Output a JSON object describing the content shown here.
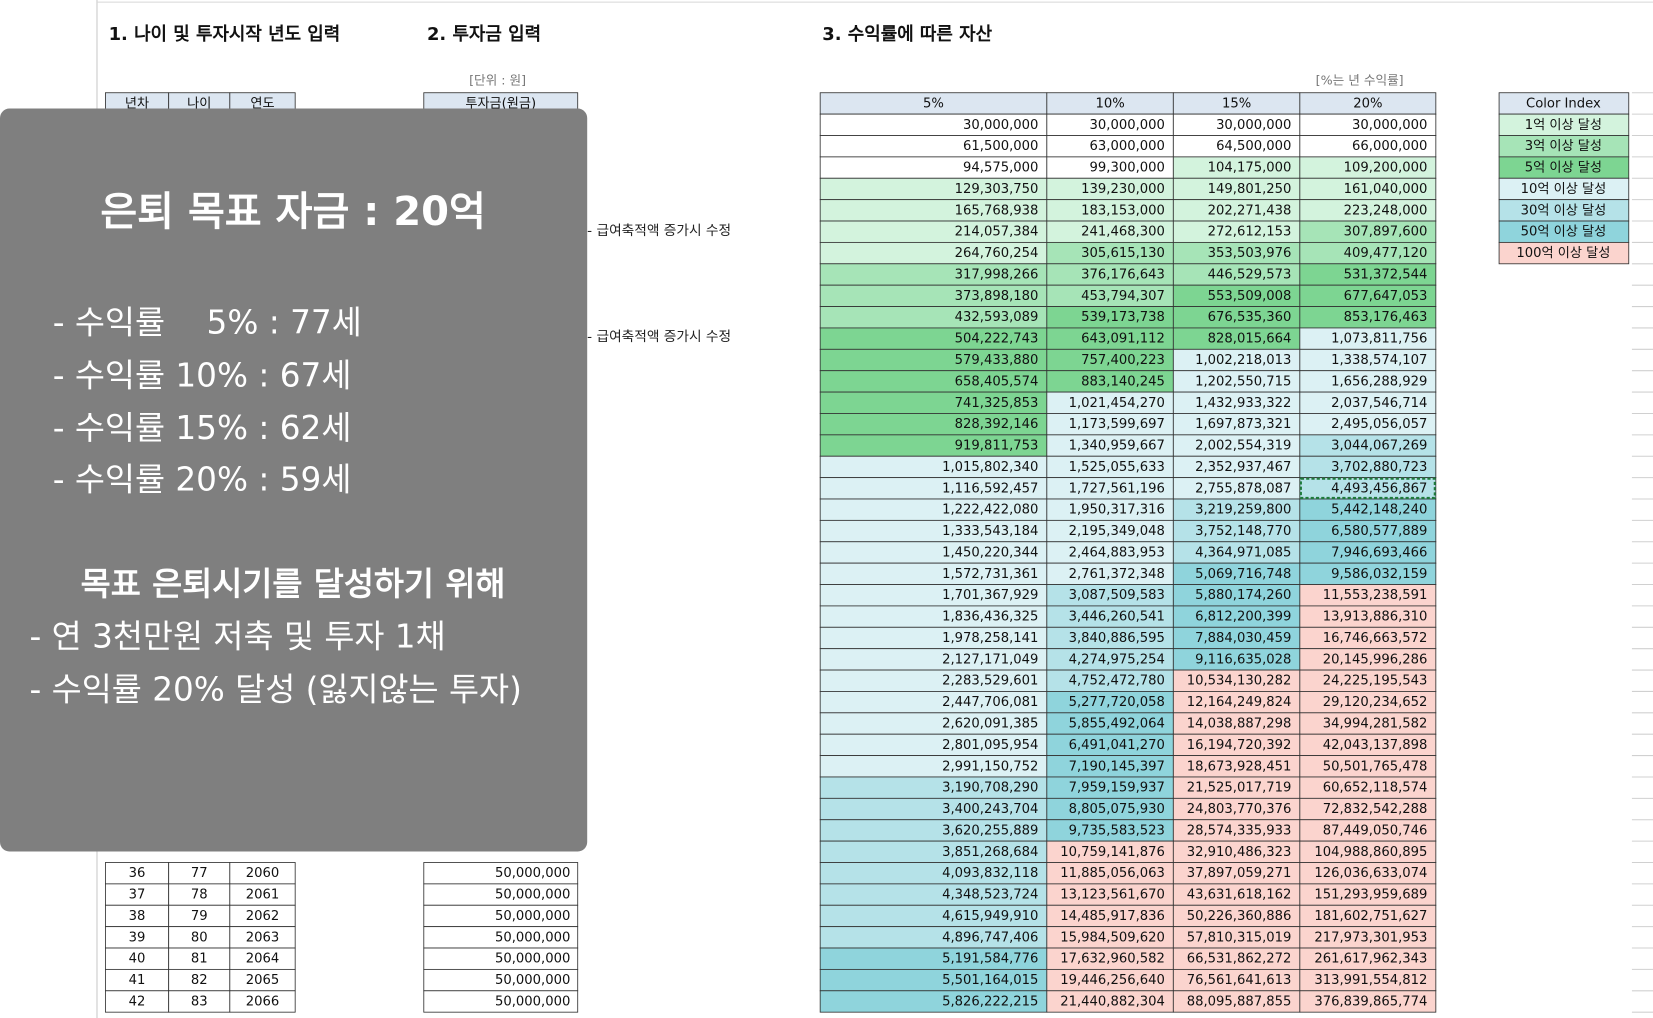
{
  "titles": {
    "age_input": "1. 나이 및 투자시작 년도 입력",
    "investment_input": "2. 투자금 입력",
    "assets": "3. 수익률에 따른 자산"
  },
  "age_table": {
    "headers": [
      "년차",
      "나이",
      "연도"
    ],
    "rows": [
      [
        "36",
        "77",
        "2060"
      ],
      [
        "37",
        "78",
        "2061"
      ],
      [
        "38",
        "79",
        "2062"
      ],
      [
        "39",
        "80",
        "2063"
      ],
      [
        "40",
        "81",
        "2064"
      ],
      [
        "41",
        "82",
        "2065"
      ],
      [
        "42",
        "83",
        "2066"
      ]
    ]
  },
  "investment_table": {
    "unit": "[단위 : 원]",
    "header": "투자금(원금)",
    "rows": [
      "50,000,000",
      "50,000,000",
      "50,000,000",
      "50,000,000",
      "50,000,000",
      "50,000,000",
      "50,000,000"
    ]
  },
  "notes": [
    "- 급여축적액 증가시 수정",
    "- 급여축적액 증가시 수정"
  ],
  "asset_table": {
    "unit": "[%는 년 수익률]",
    "headers": [
      "5%",
      "10%",
      "15%",
      "20%"
    ],
    "rows": [
      [
        "30,000,000",
        "30,000,000",
        "30,000,000",
        "30,000,000"
      ],
      [
        "61,500,000",
        "63,000,000",
        "64,500,000",
        "66,000,000"
      ],
      [
        "94,575,000",
        "99,300,000",
        "104,175,000",
        "109,200,000"
      ],
      [
        "129,303,750",
        "139,230,000",
        "149,801,250",
        "161,040,000"
      ],
      [
        "165,768,938",
        "183,153,000",
        "202,271,438",
        "223,248,000"
      ],
      [
        "214,057,384",
        "241,468,300",
        "272,612,153",
        "307,897,600"
      ],
      [
        "264,760,254",
        "305,615,130",
        "353,503,976",
        "409,477,120"
      ],
      [
        "317,998,266",
        "376,176,643",
        "446,529,573",
        "531,372,544"
      ],
      [
        "373,898,180",
        "453,794,307",
        "553,509,008",
        "677,647,053"
      ],
      [
        "432,593,089",
        "539,173,738",
        "676,535,360",
        "853,176,463"
      ],
      [
        "504,222,743",
        "643,091,112",
        "828,015,664",
        "1,073,811,756"
      ],
      [
        "579,433,880",
        "757,400,223",
        "1,002,218,013",
        "1,338,574,107"
      ],
      [
        "658,405,574",
        "883,140,245",
        "1,202,550,715",
        "1,656,288,929"
      ],
      [
        "741,325,853",
        "1,021,454,270",
        "1,432,933,322",
        "2,037,546,714"
      ],
      [
        "828,392,146",
        "1,173,599,697",
        "1,697,873,321",
        "2,495,056,057"
      ],
      [
        "919,811,753",
        "1,340,959,667",
        "2,002,554,319",
        "3,044,067,269"
      ],
      [
        "1,015,802,340",
        "1,525,055,633",
        "2,352,937,467",
        "3,702,880,723"
      ],
      [
        "1,116,592,457",
        "1,727,561,196",
        "2,755,878,087",
        "4,493,456,867"
      ],
      [
        "1,222,422,080",
        "1,950,317,316",
        "3,219,259,800",
        "5,442,148,240"
      ],
      [
        "1,333,543,184",
        "2,195,349,048",
        "3,752,148,770",
        "6,580,577,889"
      ],
      [
        "1,450,220,344",
        "2,464,883,953",
        "4,364,971,085",
        "7,946,693,466"
      ],
      [
        "1,572,731,361",
        "2,761,372,348",
        "5,069,716,748",
        "9,586,032,159"
      ],
      [
        "1,701,367,929",
        "3,087,509,583",
        "5,880,174,260",
        "11,553,238,591"
      ],
      [
        "1,836,436,325",
        "3,446,260,541",
        "6,812,200,399",
        "13,913,886,310"
      ],
      [
        "1,978,258,141",
        "3,840,886,595",
        "7,884,030,459",
        "16,746,663,572"
      ],
      [
        "2,127,171,049",
        "4,274,975,254",
        "9,116,635,028",
        "20,145,996,286"
      ],
      [
        "2,283,529,601",
        "4,752,472,780",
        "10,534,130,282",
        "24,225,195,543"
      ],
      [
        "2,447,706,081",
        "5,277,720,058",
        "12,164,249,824",
        "29,120,234,652"
      ],
      [
        "2,620,091,385",
        "5,855,492,064",
        "14,038,887,298",
        "34,994,281,582"
      ],
      [
        "2,801,095,954",
        "6,491,041,270",
        "16,194,720,392",
        "42,043,137,898"
      ],
      [
        "2,991,150,752",
        "7,190,145,397",
        "18,673,928,451",
        "50,501,765,478"
      ],
      [
        "3,190,708,290",
        "7,959,159,937",
        "21,525,017,719",
        "60,652,118,574"
      ],
      [
        "3,400,243,704",
        "8,805,075,930",
        "24,803,770,376",
        "72,832,542,288"
      ],
      [
        "3,620,255,889",
        "9,735,583,523",
        "28,574,335,933",
        "87,449,050,746"
      ],
      [
        "3,851,268,684",
        "10,759,141,876",
        "32,910,486,323",
        "104,988,860,895"
      ],
      [
        "4,093,832,118",
        "11,885,056,063",
        "37,897,059,271",
        "126,036,633,074"
      ],
      [
        "4,348,523,724",
        "13,123,561,670",
        "43,631,618,162",
        "151,293,959,689"
      ],
      [
        "4,615,949,910",
        "14,485,917,836",
        "50,226,360,886",
        "181,602,751,627"
      ],
      [
        "4,896,747,406",
        "15,984,509,620",
        "57,810,315,019",
        "217,973,301,953"
      ],
      [
        "5,191,584,776",
        "17,632,960,582",
        "66,531,862,272",
        "261,617,962,343"
      ],
      [
        "5,501,164,015",
        "19,446,256,640",
        "76,561,641,613",
        "313,991,554,812"
      ],
      [
        "5,826,222,215",
        "21,440,882,304",
        "88,095,887,855",
        "376,839,865,774"
      ]
    ]
  },
  "color_index": {
    "header": "Color Index",
    "items": [
      {
        "label": "1억 이상 달성",
        "color": "#d3f3dd"
      },
      {
        "label": "3억 이상 달성",
        "color": "#a6e4b7"
      },
      {
        "label": "5억 이상 달성",
        "color": "#7dd592"
      },
      {
        "label": "10억 이상 달성",
        "color": "#dcf1f4"
      },
      {
        "label": "30억 이상 달성",
        "color": "#b5e2e8"
      },
      {
        "label": "50억 이상 달성",
        "color": "#8fd4dc"
      },
      {
        "label": "100억 이상 달성",
        "color": "#fbd4ce"
      }
    ]
  },
  "overlay": {
    "title": "은퇴 목표 자금 : 20억",
    "lines": [
      "- 수익률    5% : 77세",
      "- 수익률 10% : 67세",
      "- 수익률 15% : 62세",
      "- 수익률 20% : 59세"
    ],
    "subtitle": "목표 은퇴시기를 달성하기 위해",
    "plan": [
      "- 연 3천만원 저축 및 투자 1채",
      "- 수익률 20% 달성 (잃지않는 투자)"
    ]
  }
}
